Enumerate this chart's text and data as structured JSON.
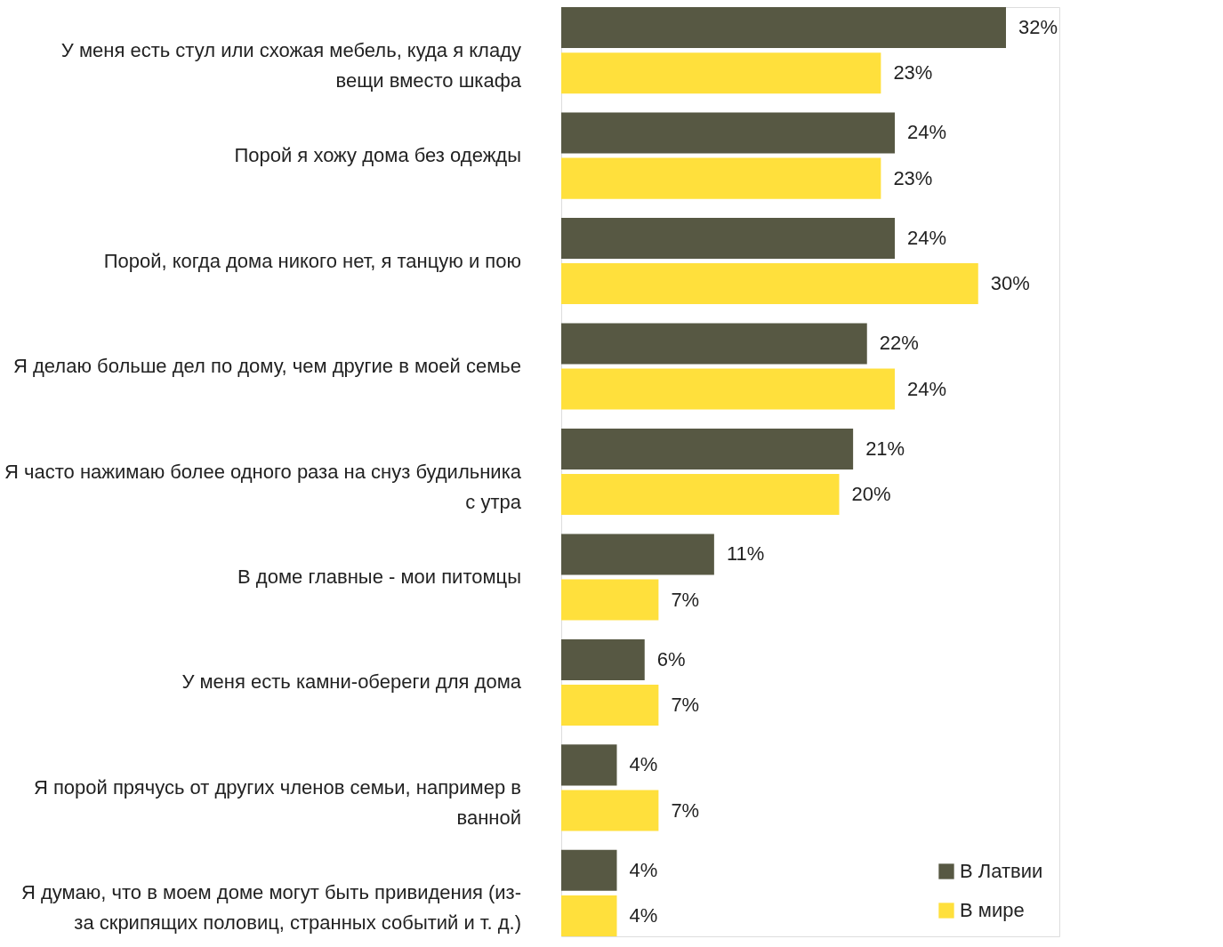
{
  "chart_data": {
    "type": "bar",
    "orientation": "horizontal",
    "categories": [
      "У меня есть стул или схожая мебель, куда я кладу вещи вместо шкафа",
      "Порой я хожу дома без одежды",
      "Порой, когда дома никого нет, я танцую и пою",
      "Я делаю больше дел по дому, чем другие в моей семье",
      "Я часто нажимаю более одного раза на снуз будильника с утра",
      "В доме главные - мои питомцы",
      "У меня есть камни-обереги для дома",
      "Я порой прячусь от других членов семьи, например в ванной",
      "Я думаю, что в моем доме могут быть привидения (из-за скрипящих половиц, странных событий и т. д.)"
    ],
    "series": [
      {
        "name": "В Латвии",
        "color": "#575843",
        "values": [
          32,
          24,
          24,
          22,
          21,
          11,
          6,
          4,
          4
        ],
        "value_labels": [
          "32%",
          "24%",
          "24%",
          "22%",
          "21%",
          "11%",
          "6%",
          "4%",
          "4%"
        ]
      },
      {
        "name": "В мире",
        "color": "#ffe03c",
        "values": [
          23,
          23,
          30,
          24,
          20,
          7,
          7,
          7,
          4
        ],
        "value_labels": [
          "23%",
          "23%",
          "30%",
          "24%",
          "20%",
          "7%",
          "7%",
          "7%",
          "4%"
        ]
      }
    ],
    "legend": "bottom right",
    "grid": false
  }
}
